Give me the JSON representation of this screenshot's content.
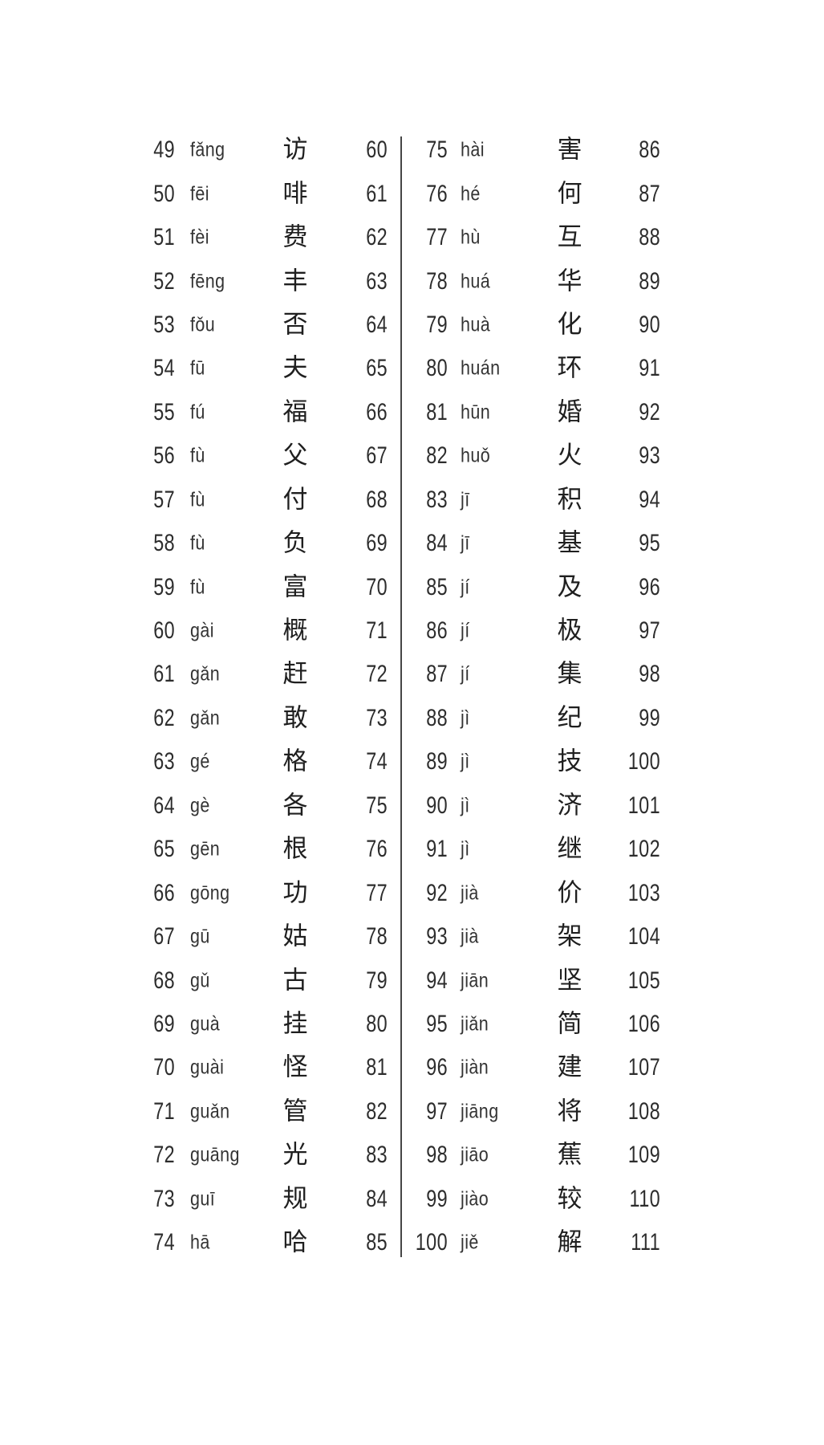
{
  "page": {
    "background_color": "#ffffff",
    "text_color": "#2d2d2d",
    "divider_color": "#464646"
  },
  "index_table": {
    "row_fields": [
      "number",
      "pinyin",
      "character",
      "page"
    ],
    "left_entries": [
      {
        "no": "49",
        "pinyin": "fǎng",
        "char": "访",
        "page": "60"
      },
      {
        "no": "50",
        "pinyin": "fēi",
        "char": "啡",
        "page": "61"
      },
      {
        "no": "51",
        "pinyin": "fèi",
        "char": "费",
        "page": "62"
      },
      {
        "no": "52",
        "pinyin": "fēng",
        "char": "丰",
        "page": "63"
      },
      {
        "no": "53",
        "pinyin": "fǒu",
        "char": "否",
        "page": "64"
      },
      {
        "no": "54",
        "pinyin": "fū",
        "char": "夫",
        "page": "65"
      },
      {
        "no": "55",
        "pinyin": "fú",
        "char": "福",
        "page": "66"
      },
      {
        "no": "56",
        "pinyin": "fù",
        "char": "父",
        "page": "67"
      },
      {
        "no": "57",
        "pinyin": "fù",
        "char": "付",
        "page": "68"
      },
      {
        "no": "58",
        "pinyin": "fù",
        "char": "负",
        "page": "69"
      },
      {
        "no": "59",
        "pinyin": "fù",
        "char": "富",
        "page": "70"
      },
      {
        "no": "60",
        "pinyin": "gài",
        "char": "概",
        "page": "71"
      },
      {
        "no": "61",
        "pinyin": "gǎn",
        "char": "赶",
        "page": "72"
      },
      {
        "no": "62",
        "pinyin": "gǎn",
        "char": "敢",
        "page": "73"
      },
      {
        "no": "63",
        "pinyin": "gé",
        "char": "格",
        "page": "74"
      },
      {
        "no": "64",
        "pinyin": "gè",
        "char": "各",
        "page": "75"
      },
      {
        "no": "65",
        "pinyin": "gēn",
        "char": "根",
        "page": "76"
      },
      {
        "no": "66",
        "pinyin": "gōng",
        "char": "功",
        "page": "77"
      },
      {
        "no": "67",
        "pinyin": "gū",
        "char": "姑",
        "page": "78"
      },
      {
        "no": "68",
        "pinyin": "gǔ",
        "char": "古",
        "page": "79"
      },
      {
        "no": "69",
        "pinyin": "guà",
        "char": "挂",
        "page": "80"
      },
      {
        "no": "70",
        "pinyin": "guài",
        "char": "怪",
        "page": "81"
      },
      {
        "no": "71",
        "pinyin": "guǎn",
        "char": "管",
        "page": "82"
      },
      {
        "no": "72",
        "pinyin": "guāng",
        "char": "光",
        "page": "83"
      },
      {
        "no": "73",
        "pinyin": "guī",
        "char": "规",
        "page": "84"
      },
      {
        "no": "74",
        "pinyin": "hā",
        "char": "哈",
        "page": "85"
      }
    ],
    "right_entries": [
      {
        "no": "75",
        "pinyin": "hài",
        "char": "害",
        "page": "86"
      },
      {
        "no": "76",
        "pinyin": "hé",
        "char": "何",
        "page": "87"
      },
      {
        "no": "77",
        "pinyin": "hù",
        "char": "互",
        "page": "88"
      },
      {
        "no": "78",
        "pinyin": "huá",
        "char": "华",
        "page": "89"
      },
      {
        "no": "79",
        "pinyin": "huà",
        "char": "化",
        "page": "90"
      },
      {
        "no": "80",
        "pinyin": "huán",
        "char": "环",
        "page": "91"
      },
      {
        "no": "81",
        "pinyin": "hūn",
        "char": "婚",
        "page": "92"
      },
      {
        "no": "82",
        "pinyin": "huǒ",
        "char": "火",
        "page": "93"
      },
      {
        "no": "83",
        "pinyin": "jī",
        "char": "积",
        "page": "94"
      },
      {
        "no": "84",
        "pinyin": "jī",
        "char": "基",
        "page": "95"
      },
      {
        "no": "85",
        "pinyin": "jí",
        "char": "及",
        "page": "96"
      },
      {
        "no": "86",
        "pinyin": "jí",
        "char": "极",
        "page": "97"
      },
      {
        "no": "87",
        "pinyin": "jí",
        "char": "集",
        "page": "98"
      },
      {
        "no": "88",
        "pinyin": "jì",
        "char": "纪",
        "page": "99"
      },
      {
        "no": "89",
        "pinyin": "jì",
        "char": "技",
        "page": "100"
      },
      {
        "no": "90",
        "pinyin": "jì",
        "char": "济",
        "page": "101"
      },
      {
        "no": "91",
        "pinyin": "jì",
        "char": "继",
        "page": "102"
      },
      {
        "no": "92",
        "pinyin": "jià",
        "char": "价",
        "page": "103"
      },
      {
        "no": "93",
        "pinyin": "jià",
        "char": "架",
        "page": "104"
      },
      {
        "no": "94",
        "pinyin": "jiān",
        "char": "坚",
        "page": "105"
      },
      {
        "no": "95",
        "pinyin": "jiǎn",
        "char": "简",
        "page": "106"
      },
      {
        "no": "96",
        "pinyin": "jiàn",
        "char": "建",
        "page": "107"
      },
      {
        "no": "97",
        "pinyin": "jiāng",
        "char": "将",
        "page": "108"
      },
      {
        "no": "98",
        "pinyin": "jiāo",
        "char": "蕉",
        "page": "109"
      },
      {
        "no": "99",
        "pinyin": "jiào",
        "char": "较",
        "page": "110"
      },
      {
        "no": "100",
        "pinyin": "jiě",
        "char": "解",
        "page": "111"
      }
    ]
  }
}
